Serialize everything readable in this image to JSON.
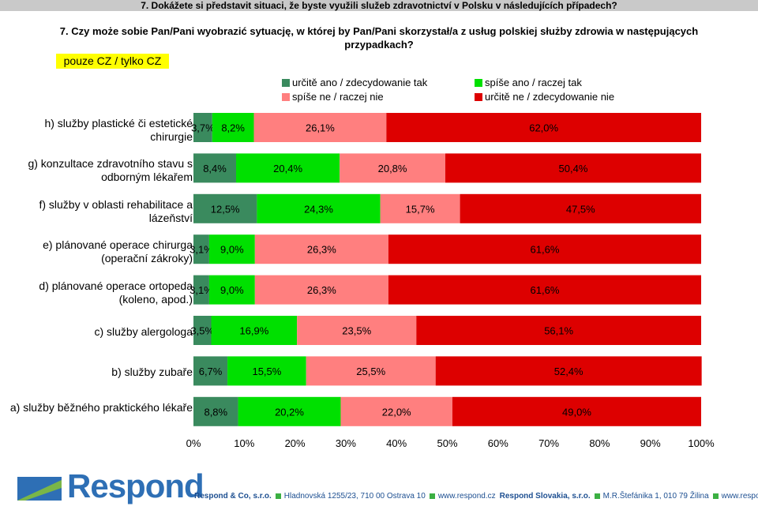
{
  "header": {
    "question_cz": "7. Dokážete si představit situaci, že byste využili služeb zdravotnictví v Polsku v následujících případech?",
    "question_pl": "7. Czy może sobie Pan/Pani wyobrazić sytuację, w której by Pan/Pani skorzystał/a z usług polskiej służby zdrowia w następujących przypadkach?",
    "filter_label": "pouze CZ / tylko CZ"
  },
  "colors": {
    "definitely_yes": "#3a8a5e",
    "rather_yes": "#00e000",
    "rather_no": "#ff7f7f",
    "definitely_no": "#dd0000"
  },
  "chart_data": {
    "type": "bar",
    "orientation": "horizontal",
    "stacked": true,
    "categories": [
      "h) služby plastické či estetické chirurgie",
      "g) konzultace zdravotního stavu s odborným lékařem",
      "f) služby v oblasti rehabilitace a lázeňství",
      "e) plánované operace chirurga (operační zákroky)",
      "d) plánované operace ortopeda (koleno, apod.)",
      "c) služby alergologa",
      "b) služby zubaře",
      "a) služby běžného praktického lékaře"
    ],
    "series": [
      {
        "name": "určitě ano / zdecydowanie tak",
        "color_key": "definitely_yes",
        "values": [
          3.7,
          8.4,
          12.5,
          3.1,
          3.1,
          3.5,
          6.7,
          8.8
        ]
      },
      {
        "name": "spíše ano / raczej tak",
        "color_key": "rather_yes",
        "values": [
          8.2,
          20.4,
          24.3,
          9.0,
          9.0,
          16.9,
          15.5,
          20.2
        ]
      },
      {
        "name": "spíše ne / raczej nie",
        "color_key": "rather_no",
        "values": [
          26.1,
          20.8,
          15.7,
          26.3,
          26.3,
          23.5,
          25.5,
          22.0
        ]
      },
      {
        "name": "určitě ne / zdecydowanie nie",
        "color_key": "definitely_no",
        "values": [
          62.0,
          50.4,
          47.5,
          61.6,
          61.6,
          56.1,
          52.4,
          49.0
        ]
      }
    ],
    "xlim": [
      0,
      100
    ],
    "xticks": [
      "0%",
      "10%",
      "20%",
      "30%",
      "40%",
      "50%",
      "60%",
      "70%",
      "80%",
      "90%",
      "100%"
    ],
    "value_suffix": "%",
    "legend_position": "top"
  },
  "footer": {
    "logo_text": "Respond",
    "contacts": [
      {
        "text": "Respond & Co, s.r.o.",
        "style": "bold",
        "square": false
      },
      {
        "text": "Hladnovská 1255/23, 710 00  Ostrava 10",
        "style": "blue",
        "square": true
      },
      {
        "text": "www.respond.cz",
        "style": "blue",
        "square": true
      },
      {
        "text": "Respond Slovakia, s.r.o.",
        "style": "bold",
        "square": false
      },
      {
        "text": "M.R.Štefánika 1, 010 79  Žilina",
        "style": "blue",
        "square": true
      },
      {
        "text": "www.respond.sk",
        "style": "blue",
        "square": true
      }
    ]
  }
}
